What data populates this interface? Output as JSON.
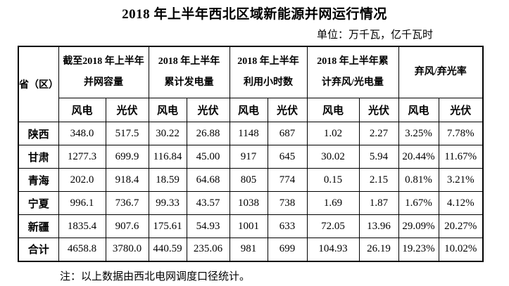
{
  "title": "2018 年上半年西北区域新能源并网运行情况",
  "unit_label": "单位：万千瓦，亿千瓦时",
  "table": {
    "corner_header": "省（区）",
    "group_headers": [
      {
        "line1": "截至2018 年上半年",
        "line2": "并网容量"
      },
      {
        "line1": "2018 年上半年",
        "line2": "累计发电量"
      },
      {
        "line1": "2018 年上半年",
        "line2": "利用小时数"
      },
      {
        "line1": "2018 年上半年累",
        "line2": "计弃风/光电量"
      },
      {
        "line1": "弃风/弃光率"
      }
    ],
    "sub_headers": [
      "风电",
      "光伏"
    ],
    "rows": [
      {
        "province": "陕西",
        "values": [
          "348.0",
          "517.5",
          "30.22",
          "26.88",
          "1148",
          "687",
          "1.02",
          "2.27",
          "3.25%",
          "7.78%"
        ]
      },
      {
        "province": "甘肃",
        "values": [
          "1277.3",
          "699.9",
          "116.84",
          "45.00",
          "917",
          "645",
          "30.02",
          "5.94",
          "20.44%",
          "11.67%"
        ]
      },
      {
        "province": "青海",
        "values": [
          "202.0",
          "918.4",
          "18.59",
          "64.68",
          "805",
          "774",
          "0.15",
          "2.15",
          "0.81%",
          "3.21%"
        ]
      },
      {
        "province": "宁夏",
        "values": [
          "996.1",
          "736.7",
          "99.33",
          "43.57",
          "1038",
          "738",
          "1.69",
          "1.87",
          "1.67%",
          "4.12%"
        ]
      },
      {
        "province": "新疆",
        "values": [
          "1835.4",
          "907.6",
          "175.61",
          "54.93",
          "1001",
          "633",
          "72.05",
          "13.96",
          "29.09%",
          "20.27%"
        ]
      },
      {
        "province": "合计",
        "values": [
          "4658.8",
          "3780.0",
          "440.59",
          "235.06",
          "981",
          "699",
          "104.93",
          "26.19",
          "19.23%",
          "10.02%"
        ]
      }
    ]
  },
  "note": "注：以上数据由西北电网调度口径统计。"
}
